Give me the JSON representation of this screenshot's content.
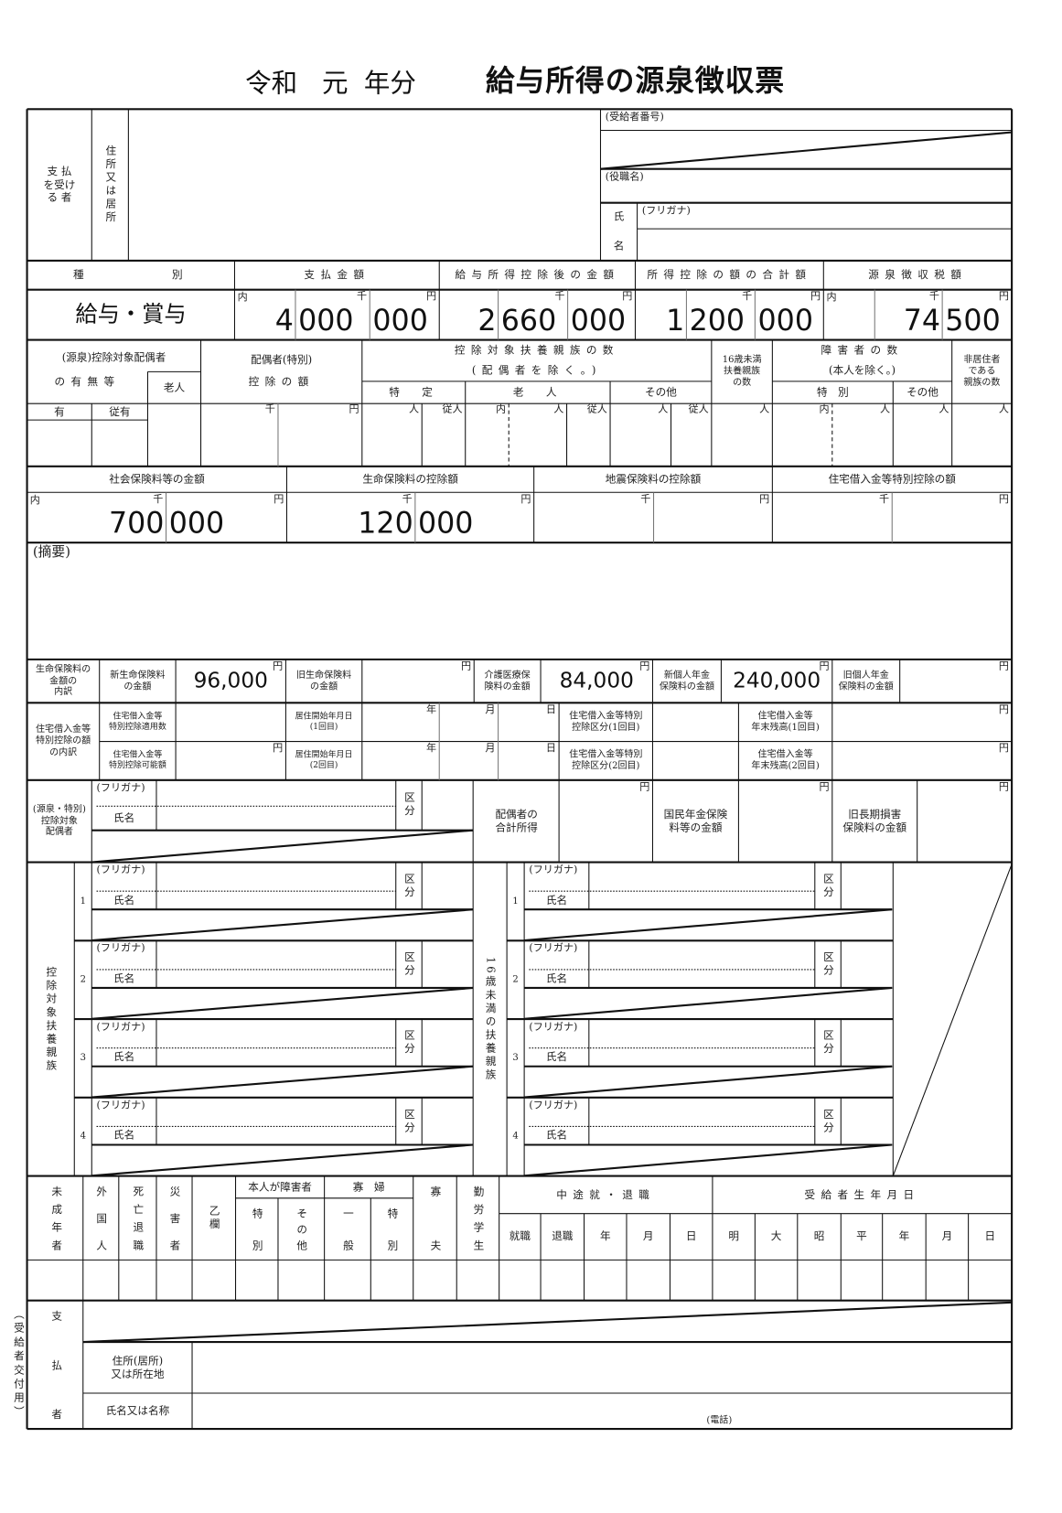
{
  "title": {
    "era": "令和",
    "year": "元",
    "year_suffix": "年分",
    "name": "給与所得の源泉徴収票"
  },
  "recipient": {
    "label": "支 払\nを受け\nる 者",
    "address_label": "住所又は居所",
    "number_label": "(受給者番号)",
    "position_label": "(役職名)",
    "name_label_1": "氏",
    "name_label_2": "名",
    "furigana_label": "(フリガナ)"
  },
  "summary": {
    "headers": [
      "種　　　　　別",
      "支払金額",
      "給与所得控除後の金額",
      "所得控除の額の合計額",
      "源泉徴収税額"
    ],
    "inner": "内",
    "thousand": "千",
    "yen": "円",
    "type": "給与・賞与",
    "payment": [
      "4",
      "000",
      "000"
    ],
    "after_deduction": [
      "2",
      "660",
      "000"
    ],
    "total_deductions": [
      "1",
      "200",
      "000"
    ],
    "withholding_tax": [
      "74",
      "500"
    ]
  },
  "family": {
    "spouse_header_1": "(源泉)控除対象配偶者",
    "spouse_header_2": "の有無等",
    "elderly": "老人",
    "spouse_deduction_1": "配偶者(特別)",
    "spouse_deduction_2": "控除の額",
    "dependents_1": "控除対象扶養親族の数",
    "dependents_2": "(配偶者を除く。)",
    "specific": "特　定",
    "elderly2": "老　人",
    "other": "その他",
    "under16": "16歳未満\n扶養親族\nの数",
    "disabled_1": "障害者の数",
    "disabled_2": "(本人を除く。)",
    "special": "特　別",
    "other2": "その他",
    "nonresident": "非居住者\nである\n親族の数",
    "has": "有",
    "has_subordinate": "従有",
    "person": "人",
    "subordinate": "従人"
  },
  "insurance": {
    "social": "社会保険料等の金額",
    "life": "生命保険料の控除額",
    "earthquake": "地震保険料の控除額",
    "housing": "住宅借入金等特別控除の額",
    "social_value": [
      "700",
      "000"
    ],
    "life_value": [
      "120",
      "000"
    ]
  },
  "remarks": {
    "label": "(摘要)"
  },
  "life_breakdown": {
    "label": "生命保険料の\n金額の\n内訳",
    "new_life_label": "新生命保険料\nの金額",
    "new_life_value": "96,000",
    "old_life_label": "旧生命保険料\nの金額",
    "care_label": "介護医療保\n険料の金額",
    "care_value": "84,000",
    "new_pension_label": "新個人年金\n保険料の金額",
    "new_pension_value": "240,000",
    "old_pension_label": "旧個人年金\n保険料の金額"
  },
  "housing_breakdown": {
    "label": "住宅借入金等\n特別控除の額\nの内訳",
    "applied_count": "住宅借入金等\n特別控除適用数",
    "possible_amount": "住宅借入金等\n特別控除可能額",
    "start_1": "居住開始年月日\n(1回目)",
    "start_2": "居住開始年月日\n(2回目)",
    "year": "年",
    "month": "月",
    "day": "日",
    "category_1": "住宅借入金等特別\n控除区分(1回目)",
    "category_2": "住宅借入金等特別\n控除区分(2回目)",
    "balance_1": "住宅借入金等\n年末残高(1回目)",
    "balance_2": "住宅借入金等\n年末残高(2回目)"
  },
  "spouse": {
    "label": "(源泉・特別)\n控除対象\n配偶者",
    "furigana": "(フリガナ)",
    "name": "氏名",
    "kubun": "区分",
    "total_income": "配偶者の\n合計所得",
    "national_pension": "国民年金保険\n料等の金額",
    "old_long_term": "旧長期損害\n保険料の金額"
  },
  "dependents": {
    "label": "控除対象扶養親族",
    "under16_label": "16歳未満の扶養親族",
    "numbers": [
      "1",
      "2",
      "3",
      "4"
    ]
  },
  "flags": {
    "minor": "未成年者",
    "foreigner": "外国人",
    "death_retirement": "死亡退職",
    "disaster": "災害者",
    "otsu": "乙欄",
    "disabled_self": "本人が障害者",
    "special": "特別",
    "other": "その他",
    "widow": "寡　婦",
    "general": "一般",
    "widow_special": "特別",
    "widower": "寡夫",
    "working_student": "勤労学生",
    "midyear": "中途就・退職",
    "hire": "就職",
    "retire": "退職",
    "year": "年",
    "month": "月",
    "day": "日",
    "birth": "受給者生年月日",
    "meiji": "明",
    "taisho": "大",
    "showa": "昭",
    "heisei": "平"
  },
  "payer": {
    "label": "支払者",
    "address_label": "住所(居所)\n又は所在地",
    "name_label": "氏名又は名称",
    "phone": "(電話)"
  },
  "copy_label": "（受給者交付用）"
}
